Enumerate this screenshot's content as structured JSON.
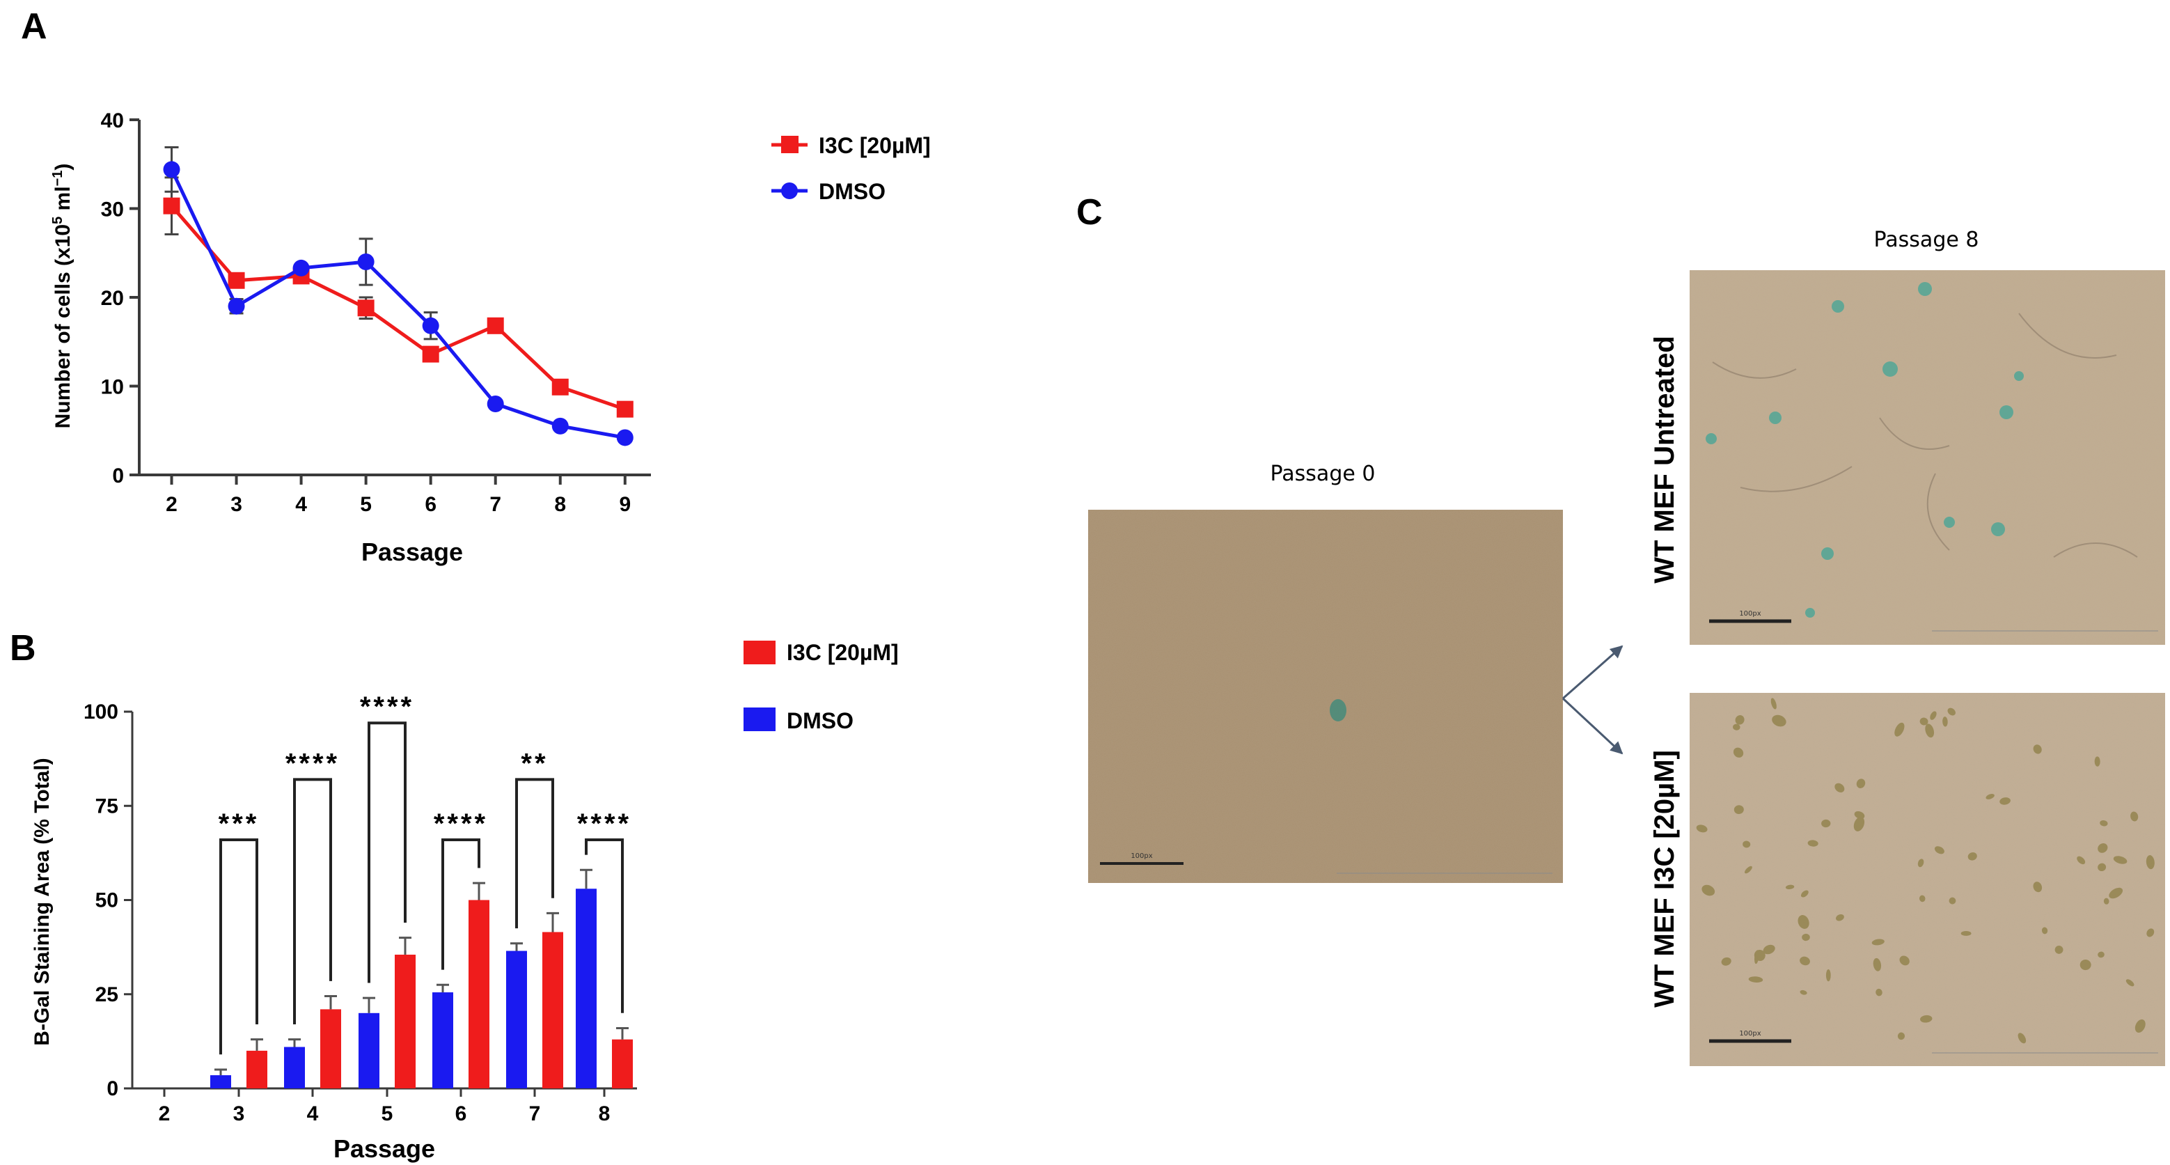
{
  "panels": {
    "a": "A",
    "b": "B",
    "c": "C"
  },
  "colors": {
    "i3c": "#ef1c1c",
    "dmso": "#1a1af0",
    "axis": "#3a3a3a",
    "micro_bg": "#a99070",
    "arrow": "#4a5a70"
  },
  "chart_data": [
    {
      "id": "A",
      "type": "line",
      "xlabel": "Passage",
      "ylabel_main": "Number of cells (x10",
      "ylabel_sup5": "5",
      "ylabel_mid": " ml",
      "ylabel_supm1": "−1",
      "ylabel_end": ")",
      "x": [
        2,
        3,
        4,
        5,
        6,
        7,
        8,
        9
      ],
      "ylim": [
        0,
        40
      ],
      "yticks": [
        0,
        10,
        20,
        30,
        40
      ],
      "series": [
        {
          "name": "I3C [20µM]",
          "marker": "square",
          "color": "#ef1c1c",
          "values": [
            30.3,
            21.9,
            22.4,
            18.8,
            13.6,
            16.8,
            9.9,
            7.4
          ],
          "errors": [
            3.2,
            0.3,
            0.4,
            1.2,
            0.4,
            0.3,
            0.3,
            0.3
          ]
        },
        {
          "name": "DMSO",
          "marker": "circle",
          "color": "#1a1af0",
          "values": [
            34.4,
            19.0,
            23.3,
            24.0,
            16.8,
            8.0,
            5.5,
            4.2
          ],
          "errors": [
            2.5,
            0.8,
            0.3,
            2.6,
            1.5,
            0.3,
            0.2,
            0.2
          ]
        }
      ]
    },
    {
      "id": "B",
      "type": "bar",
      "xlabel": "Passage",
      "ylabel": "B-Gal Staining Area (% Total)",
      "categories": [
        "2",
        "3",
        "4",
        "5",
        "6",
        "7",
        "8"
      ],
      "ylim": [
        0,
        100
      ],
      "yticks": [
        0,
        25,
        50,
        75,
        100
      ],
      "series": [
        {
          "name": "DMSO",
          "color": "#1a1af0",
          "values": [
            0,
            3.5,
            11,
            20,
            25.5,
            36.5,
            53
          ],
          "errors": [
            0,
            1.5,
            2,
            4,
            2,
            2,
            5
          ]
        },
        {
          "name": "I3C [20µM]",
          "color": "#ef1c1c",
          "values": [
            0,
            10,
            21,
            35.5,
            50,
            41.5,
            13
          ],
          "errors": [
            0,
            3,
            3.5,
            4.5,
            4.5,
            5,
            3
          ]
        }
      ],
      "significance": [
        {
          "category": "3",
          "label": "***",
          "bracket_y": 66
        },
        {
          "category": "4",
          "label": "****",
          "bracket_y": 82
        },
        {
          "category": "5",
          "label": "****",
          "bracket_y": 97
        },
        {
          "category": "6",
          "label": "****",
          "bracket_y": 66
        },
        {
          "category": "7",
          "label": "**",
          "bracket_y": 82
        },
        {
          "category": "8",
          "label": "****",
          "bracket_y": 66
        }
      ]
    }
  ],
  "legend_a": {
    "i3c": "I3C [20µM]",
    "dmso": "DMSO"
  },
  "legend_b": {
    "i3c": "I3C [20µM]",
    "dmso": "DMSO"
  },
  "panel_c": {
    "passage0_label": "Passage 0",
    "passage8_label": "Passage 8",
    "untreated_label": "WT MEF Untreated",
    "treated_label": "WT MEF I3C [20µM]",
    "scalebar_text": "100px"
  }
}
